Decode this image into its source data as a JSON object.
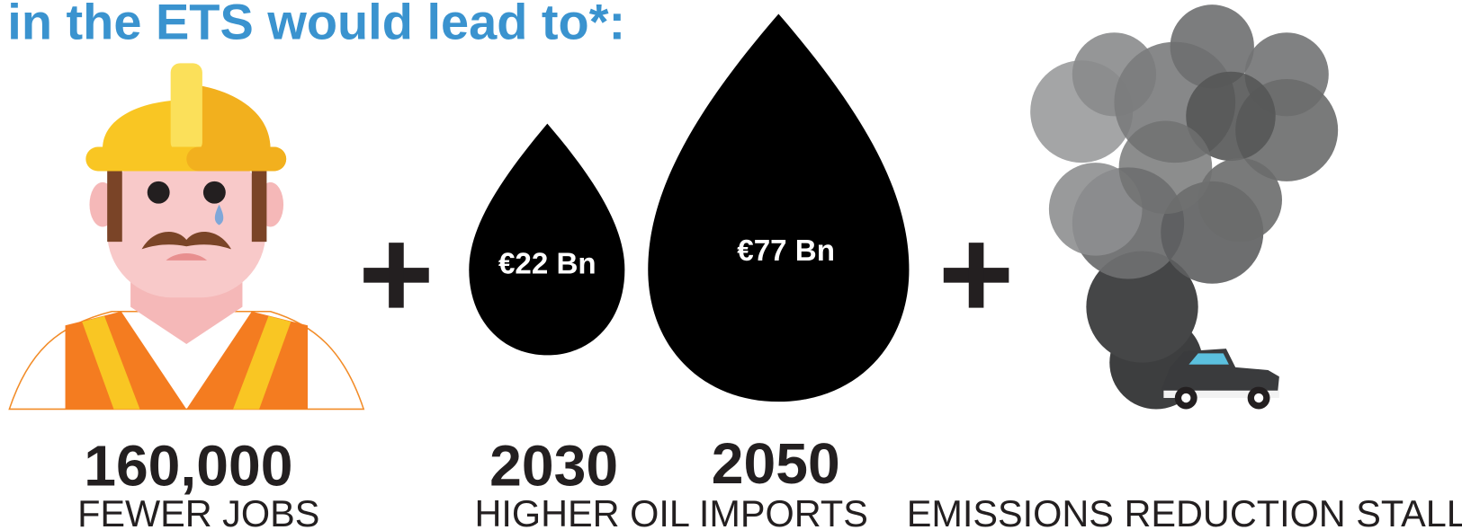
{
  "header": {
    "title": "in the ETS would lead to*:"
  },
  "panels": [
    {
      "value": "160,000",
      "label": "FEWER JOBS"
    },
    {
      "drops": [
        {
          "amount": "€22 Bn",
          "year": "2030"
        },
        {
          "amount": "€77 Bn",
          "year": "2050"
        }
      ],
      "label": "HIGHER OIL IMPORTS"
    },
    {
      "label": "EMISSIONS REDUCTION STALL"
    }
  ]
}
